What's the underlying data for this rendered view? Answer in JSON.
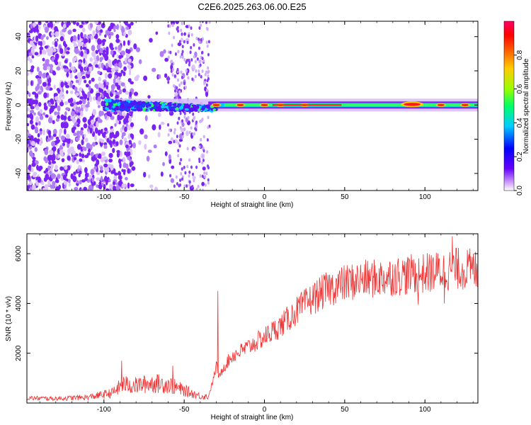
{
  "figure": {
    "title": "C2E6.2025.263.06.00.E25"
  },
  "chart_data": [
    {
      "type": "heatmap",
      "xlabel": "Height of straight line (km)",
      "ylabel": "Frequency (Hz)",
      "xlim": [
        -148,
        133
      ],
      "ylim": [
        -50,
        49
      ],
      "x_ticks": [
        -100,
        -50,
        0,
        50,
        100
      ],
      "y_ticks": [
        -40,
        -20,
        0,
        20,
        40
      ],
      "colorbar": {
        "label": "Normalized spectral amplitude",
        "range": [
          0,
          1
        ],
        "ticks": [
          "0.0",
          "0.2",
          "0.4",
          "0.6",
          "0.8"
        ],
        "tick_values": [
          0.0,
          0.2,
          0.4,
          0.6,
          0.8
        ],
        "colors": [
          "#ffffff",
          "#cc99ff",
          "#6600ff",
          "#0000ff",
          "#00ccff",
          "#00ff66",
          "#99ff00",
          "#ffcc00",
          "#ff6600",
          "#ff0000",
          "#ff0066"
        ]
      },
      "features": {
        "noise_region_x": [
          -148,
          -35
        ],
        "signal_line_freq": 0,
        "signal_start_x": -100,
        "bright_spots_x": [
          -30,
          -15,
          0,
          10,
          25,
          90,
          110,
          125
        ]
      },
      "grid": false
    },
    {
      "type": "line",
      "xlabel": "Height of straight line (km)",
      "ylabel": "SNR (10 * v/v)",
      "xlim": [
        -148,
        133
      ],
      "ylim": [
        0,
        6800
      ],
      "x_ticks": [
        -100,
        -50,
        0,
        50,
        100
      ],
      "y_ticks": [
        2000,
        4000,
        6000
      ],
      "color": "#ee3333",
      "series": [
        {
          "x": [
            -148,
            -130,
            -110,
            -95,
            -88,
            -80,
            -70,
            -60,
            -50,
            -40,
            -35,
            -32,
            -30,
            -28,
            -26,
            -20,
            -10,
            0,
            10,
            20,
            30,
            40,
            50,
            60,
            70,
            80,
            90,
            100,
            110,
            120,
            133
          ],
          "values": [
            200,
            180,
            230,
            400,
            750,
            700,
            800,
            750,
            500,
            280,
            250,
            900,
            1500,
            1000,
            1400,
            1900,
            2250,
            2650,
            3100,
            3700,
            4200,
            4600,
            4800,
            4950,
            5000,
            5100,
            5150,
            5200,
            5300,
            5400,
            5350
          ],
          "spikes": [
            {
              "x": -89,
              "y": 1700
            },
            {
              "x": -57,
              "y": 1500
            },
            {
              "x": -29,
              "y": 4500
            },
            {
              "x": 92,
              "y": 5750
            },
            {
              "x": 96,
              "y": 3950
            },
            {
              "x": 112,
              "y": 4000
            },
            {
              "x": 117,
              "y": 6700
            }
          ]
        }
      ],
      "grid": false
    }
  ]
}
